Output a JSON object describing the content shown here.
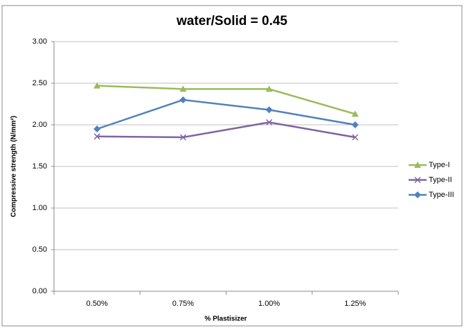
{
  "chart_data": {
    "type": "line",
    "title": "water/Solid = 0.45",
    "x_label": "% Plastisizer",
    "y_label": "Compressive strength (N/mm²)",
    "categories": [
      "0.50%",
      "0.75%",
      "1.00%",
      "1.25%"
    ],
    "series": [
      {
        "name": "Type-I",
        "color": "#9bbb59",
        "marker": "triangle",
        "values": [
          2.47,
          2.43,
          2.43,
          2.13
        ]
      },
      {
        "name": "Type-II",
        "color": "#8064a2",
        "marker": "x",
        "values": [
          1.86,
          1.85,
          2.03,
          1.85
        ]
      },
      {
        "name": "Type-III",
        "color": "#4f81bd",
        "marker": "diamond",
        "values": [
          1.95,
          2.3,
          2.18,
          2.0
        ]
      }
    ],
    "ylim": [
      0,
      3
    ],
    "yticks": [
      {
        "value": 0,
        "label": "0.00"
      },
      {
        "value": 0.5,
        "label": "0.50"
      },
      {
        "value": 1,
        "label": "1.00"
      },
      {
        "value": 1.5,
        "label": "1.50"
      },
      {
        "value": 2,
        "label": "2.00"
      },
      {
        "value": 2.5,
        "label": "2.50"
      },
      {
        "value": 3,
        "label": "3.00"
      }
    ],
    "grid": true,
    "legend": "right"
  }
}
